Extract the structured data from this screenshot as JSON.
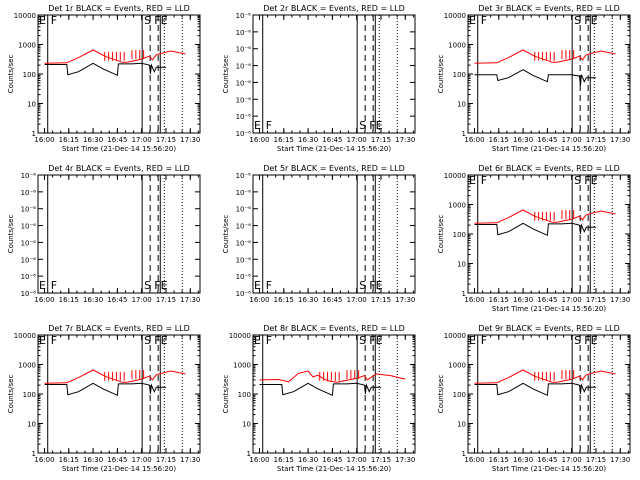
{
  "chart_data": [
    {
      "type": "line",
      "title": "Det 1r BLACK = Events, RED = LLD",
      "ylabel": "Counts/sec",
      "xlabel": "Start Time (21-Dec-14 15:56:20)",
      "yscale": "log",
      "ylim": [
        1,
        10000
      ],
      "ytick_labels": [
        "1",
        "10",
        "100",
        "1000",
        "10000"
      ],
      "xticks": [
        "16:00",
        "16:15",
        "16:30",
        "16:45",
        "17:00",
        "17:15",
        "17:30"
      ],
      "xlim": [
        "15:56",
        "17:36"
      ],
      "markers": {
        "E": "15:59",
        "F": "16:02",
        "S": "17:04",
        "FE": "17:09"
      },
      "series": [
        {
          "color": "#000000",
          "values": [
            [
              16.0,
              210
            ],
            [
              16.23,
              210
            ],
            [
              16.24,
              95
            ],
            [
              16.35,
              120
            ],
            [
              16.5,
              230
            ],
            [
              16.6,
              150
            ],
            [
              16.75,
              90
            ],
            [
              16.76,
              220
            ],
            [
              16.9,
              220
            ],
            [
              17.0,
              230
            ],
            [
              17.08,
              200
            ],
            [
              17.09,
              100
            ],
            [
              17.1,
              200
            ],
            [
              17.13,
              120
            ],
            [
              17.15,
              170
            ],
            [
              17.25,
              170
            ]
          ]
        },
        {
          "color": "#ff0000",
          "values": [
            [
              16.0,
              230
            ],
            [
              16.23,
              240
            ],
            [
              16.35,
              360
            ],
            [
              16.5,
              650
            ],
            [
              16.62,
              400
            ],
            [
              16.8,
              250
            ],
            [
              16.85,
              250
            ],
            [
              17.0,
              320
            ],
            [
              17.08,
              400
            ],
            [
              17.11,
              300
            ],
            [
              17.15,
              450
            ],
            [
              17.3,
              600
            ],
            [
              17.45,
              480
            ]
          ]
        }
      ]
    },
    {
      "type": "line",
      "title": "Det 2r BLACK = Events, RED = LLD",
      "ylabel": "Counts/sec",
      "xlabel": "Start Time (21-Dec-14 15:56:20)",
      "yscale": "log",
      "ylim": [
        1e-06,
        1e-05
      ],
      "ytick_labels": [
        "10⁻⁶",
        "10⁻⁶",
        "10⁻⁶",
        "10⁻⁶",
        "10⁻⁶",
        "10⁻⁶",
        "10⁻⁶",
        "10⁻⁶"
      ],
      "xticks": [
        "16:00",
        "16:15",
        "16:30",
        "16:45",
        "17:00",
        "17:15",
        "17:30"
      ],
      "xlim": [
        "15:56",
        "17:36"
      ],
      "markers": {
        "E": "15:59",
        "F": "16:02",
        "S": "17:04",
        "FE": "17:09"
      },
      "series": []
    },
    {
      "type": "line",
      "title": "Det 3r BLACK = Events, RED = LLD",
      "ylabel": "Counts/sec",
      "xlabel": "Start Time (21-Dec-14 15:56:20)",
      "yscale": "log",
      "ylim": [
        1,
        10000
      ],
      "ytick_labels": [
        "1",
        "10",
        "100",
        "1000",
        "10000"
      ],
      "xticks": [
        "16:00",
        "16:15",
        "16:30",
        "16:45",
        "17:00",
        "17:15",
        "17:30"
      ],
      "xlim": [
        "15:56",
        "17:36"
      ],
      "markers": {
        "E": "15:59",
        "F": "16:02",
        "S": "17:04",
        "FE": "17:09"
      },
      "series": [
        {
          "color": "#000000",
          "values": [
            [
              16.0,
              95
            ],
            [
              16.23,
              95
            ],
            [
              16.24,
              60
            ],
            [
              16.35,
              75
            ],
            [
              16.5,
              140
            ],
            [
              16.6,
              90
            ],
            [
              16.75,
              55
            ],
            [
              16.76,
              95
            ],
            [
              16.9,
              95
            ],
            [
              17.0,
              95
            ],
            [
              17.08,
              85
            ],
            [
              17.09,
              40
            ],
            [
              17.1,
              95
            ],
            [
              17.13,
              55
            ],
            [
              17.15,
              75
            ],
            [
              17.25,
              75
            ]
          ]
        },
        {
          "color": "#ff0000",
          "values": [
            [
              16.0,
              230
            ],
            [
              16.23,
              240
            ],
            [
              16.35,
              360
            ],
            [
              16.5,
              650
            ],
            [
              16.62,
              400
            ],
            [
              16.8,
              250
            ],
            [
              16.85,
              250
            ],
            [
              17.0,
              320
            ],
            [
              17.08,
              400
            ],
            [
              17.11,
              300
            ],
            [
              17.15,
              450
            ],
            [
              17.3,
              600
            ],
            [
              17.45,
              480
            ]
          ]
        }
      ]
    },
    {
      "type": "line",
      "title": "Det 4r BLACK = Events, RED = LLD",
      "ylabel": "Counts/sec",
      "xlabel": "",
      "yscale": "log",
      "ylim": [
        1e-06,
        1e-05
      ],
      "ytick_labels": [
        "10⁻⁶",
        "10⁻⁶",
        "10⁻⁶",
        "10⁻⁶",
        "10⁻⁶",
        "10⁻⁶",
        "10⁻⁶",
        "10⁻⁶"
      ],
      "xticks": [
        "16:00",
        "16:15",
        "16:30",
        "16:45",
        "17:00",
        "17:15",
        "17:30"
      ],
      "xlim": [
        "15:56",
        "17:36"
      ],
      "markers": {
        "E": "15:59",
        "F": "16:02",
        "S": "17:04",
        "FE": "17:09"
      },
      "series": []
    },
    {
      "type": "line",
      "title": "Det 5r BLACK = Events, RED = LLD",
      "ylabel": "Counts/sec",
      "xlabel": "",
      "yscale": "log",
      "ylim": [
        1e-06,
        1e-05
      ],
      "ytick_labels": [
        "10⁻⁶",
        "10⁻⁶",
        "10⁻⁶",
        "10⁻⁶",
        "10⁻⁶",
        "10⁻⁶",
        "10⁻⁶",
        "10⁻⁶"
      ],
      "xticks": [
        "16:00",
        "16:15",
        "16:30",
        "16:45",
        "17:00",
        "17:15",
        "17:30"
      ],
      "xlim": [
        "15:56",
        "17:36"
      ],
      "markers": {
        "E": "15:59",
        "F": "16:02",
        "S": "17:04",
        "FE": "17:09"
      },
      "series": []
    },
    {
      "type": "line",
      "title": "Det 6r BLACK = Events, RED = LLD",
      "ylabel": "Counts/sec",
      "xlabel": "Start Time (21-Dec-14 15:56:20)",
      "yscale": "log",
      "ylim": [
        1,
        10000
      ],
      "ytick_labels": [
        "1",
        "10",
        "100",
        "1000",
        "10000"
      ],
      "xticks": [
        "16:00",
        "16:15",
        "16:30",
        "16:45",
        "17:00",
        "17:15",
        "17:30"
      ],
      "xlim": [
        "15:56",
        "17:36"
      ],
      "markers": {
        "E": "15:59",
        "F": "16:02",
        "S": "17:04",
        "FE": "17:09"
      },
      "series": [
        {
          "color": "#000000",
          "values": [
            [
              16.0,
              210
            ],
            [
              16.23,
              210
            ],
            [
              16.24,
              95
            ],
            [
              16.35,
              120
            ],
            [
              16.5,
              230
            ],
            [
              16.6,
              150
            ],
            [
              16.75,
              90
            ],
            [
              16.76,
              220
            ],
            [
              16.9,
              220
            ],
            [
              17.0,
              230
            ],
            [
              17.08,
              200
            ],
            [
              17.09,
              100
            ],
            [
              17.1,
              200
            ],
            [
              17.13,
              120
            ],
            [
              17.15,
              170
            ],
            [
              17.25,
              170
            ]
          ]
        },
        {
          "color": "#ff0000",
          "values": [
            [
              16.0,
              230
            ],
            [
              16.23,
              240
            ],
            [
              16.35,
              360
            ],
            [
              16.5,
              650
            ],
            [
              16.62,
              400
            ],
            [
              16.8,
              250
            ],
            [
              16.85,
              250
            ],
            [
              17.0,
              320
            ],
            [
              17.08,
              400
            ],
            [
              17.11,
              300
            ],
            [
              17.15,
              450
            ],
            [
              17.3,
              600
            ],
            [
              17.45,
              480
            ]
          ]
        }
      ]
    },
    {
      "type": "line",
      "title": "Det 7r BLACK = Events, RED = LLD",
      "ylabel": "Counts/sec",
      "xlabel": "Start Time (21-Dec-14 15:56:20)",
      "yscale": "log",
      "ylim": [
        1,
        10000
      ],
      "ytick_labels": [
        "1",
        "10",
        "100",
        "1000",
        "10000"
      ],
      "xticks": [
        "16:00",
        "16:15",
        "16:30",
        "16:45",
        "17:00",
        "17:15",
        "17:30"
      ],
      "xlim": [
        "15:56",
        "17:36"
      ],
      "markers": {
        "E": "15:59",
        "F": "16:02",
        "S": "17:04",
        "FE": "17:09"
      },
      "series": [
        {
          "color": "#000000",
          "values": [
            [
              16.0,
              210
            ],
            [
              16.23,
              210
            ],
            [
              16.24,
              95
            ],
            [
              16.35,
              120
            ],
            [
              16.5,
              230
            ],
            [
              16.6,
              150
            ],
            [
              16.75,
              90
            ],
            [
              16.76,
              220
            ],
            [
              16.9,
              220
            ],
            [
              17.0,
              230
            ],
            [
              17.08,
              200
            ],
            [
              17.09,
              100
            ],
            [
              17.1,
              200
            ],
            [
              17.13,
              120
            ],
            [
              17.15,
              170
            ],
            [
              17.25,
              170
            ]
          ]
        },
        {
          "color": "#ff0000",
          "values": [
            [
              16.0,
              230
            ],
            [
              16.23,
              240
            ],
            [
              16.35,
              360
            ],
            [
              16.5,
              650
            ],
            [
              16.62,
              400
            ],
            [
              16.8,
              250
            ],
            [
              16.85,
              250
            ],
            [
              17.0,
              320
            ],
            [
              17.08,
              400
            ],
            [
              17.11,
              300
            ],
            [
              17.15,
              450
            ],
            [
              17.3,
              600
            ],
            [
              17.45,
              480
            ]
          ]
        }
      ]
    },
    {
      "type": "line",
      "title": "Det 8r BLACK = Events, RED = LLD",
      "ylabel": "Counts/sec",
      "xlabel": "Start Time (21-Dec-14 15:56:20)",
      "yscale": "log",
      "ylim": [
        1,
        10000
      ],
      "ytick_labels": [
        "1",
        "10",
        "100",
        "1000",
        "10000"
      ],
      "xticks": [
        "16:00",
        "16:15",
        "16:30",
        "16:45",
        "17:00",
        "17:15",
        "17:30"
      ],
      "xlim": [
        "15:56",
        "17:36"
      ],
      "markers": {
        "E": "15:59",
        "F": "16:02",
        "S": "17:04",
        "FE": "17:09"
      },
      "series": [
        {
          "color": "#000000",
          "values": [
            [
              16.0,
              210
            ],
            [
              16.23,
              210
            ],
            [
              16.24,
              95
            ],
            [
              16.35,
              120
            ],
            [
              16.5,
              230
            ],
            [
              16.6,
              150
            ],
            [
              16.75,
              90
            ],
            [
              16.76,
              220
            ],
            [
              16.9,
              220
            ],
            [
              17.0,
              230
            ],
            [
              17.08,
              200
            ],
            [
              17.09,
              100
            ],
            [
              17.1,
              200
            ],
            [
              17.13,
              120
            ],
            [
              17.15,
              170
            ],
            [
              17.25,
              170
            ]
          ]
        },
        {
          "color": "#ff0000",
          "values": [
            [
              16.0,
              300
            ],
            [
              16.2,
              310
            ],
            [
              16.3,
              260
            ],
            [
              16.4,
              500
            ],
            [
              16.5,
              600
            ],
            [
              16.55,
              380
            ],
            [
              16.6,
              430
            ],
            [
              16.7,
              280
            ],
            [
              16.8,
              250
            ],
            [
              17.0,
              340
            ],
            [
              17.08,
              420
            ],
            [
              17.11,
              300
            ],
            [
              17.2,
              480
            ],
            [
              17.35,
              420
            ],
            [
              17.5,
              320
            ]
          ]
        }
      ]
    },
    {
      "type": "line",
      "title": "Det 9r BLACK = Events, RED = LLD",
      "ylabel": "Counts/sec",
      "xlabel": "Start Time (21-Dec-14 15:56:20)",
      "yscale": "log",
      "ylim": [
        1,
        10000
      ],
      "ytick_labels": [
        "1",
        "10",
        "100",
        "1000",
        "10000"
      ],
      "xticks": [
        "16:00",
        "16:15",
        "16:30",
        "16:45",
        "17:00",
        "17:15",
        "17:30"
      ],
      "xlim": [
        "15:56",
        "17:36"
      ],
      "markers": {
        "E": "15:59",
        "F": "16:02",
        "S": "17:04",
        "FE": "17:09"
      },
      "series": [
        {
          "color": "#000000",
          "values": [
            [
              16.0,
              210
            ],
            [
              16.23,
              210
            ],
            [
              16.24,
              95
            ],
            [
              16.35,
              120
            ],
            [
              16.5,
              230
            ],
            [
              16.6,
              150
            ],
            [
              16.75,
              90
            ],
            [
              16.76,
              220
            ],
            [
              16.9,
              220
            ],
            [
              17.0,
              230
            ],
            [
              17.08,
              200
            ],
            [
              17.09,
              100
            ],
            [
              17.1,
              200
            ],
            [
              17.13,
              120
            ],
            [
              17.15,
              170
            ],
            [
              17.25,
              170
            ]
          ]
        },
        {
          "color": "#ff0000",
          "values": [
            [
              16.0,
              230
            ],
            [
              16.23,
              240
            ],
            [
              16.35,
              360
            ],
            [
              16.5,
              650
            ],
            [
              16.62,
              400
            ],
            [
              16.8,
              250
            ],
            [
              16.85,
              250
            ],
            [
              17.0,
              320
            ],
            [
              17.08,
              400
            ],
            [
              17.11,
              300
            ],
            [
              17.15,
              450
            ],
            [
              17.3,
              600
            ],
            [
              17.45,
              480
            ]
          ]
        }
      ]
    }
  ]
}
